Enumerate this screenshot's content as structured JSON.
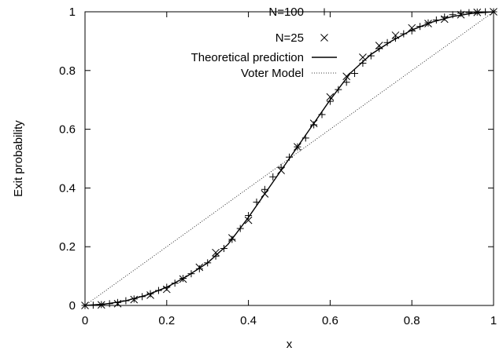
{
  "chart_data": {
    "type": "scatter",
    "title": "",
    "xlabel": "x",
    "ylabel": "Exit probability",
    "xlim": [
      0,
      1
    ],
    "ylim": [
      0,
      1
    ],
    "x_ticks": [
      "0",
      "0.2",
      "0.4",
      "0.6",
      "0.8",
      "1"
    ],
    "y_ticks": [
      "0",
      "0.2",
      "0.4",
      "0.6",
      "0.8",
      "1"
    ],
    "grid": false,
    "legend_position": "top-left",
    "series": [
      {
        "name": "N=100",
        "marker": "plus",
        "x": [
          0.0,
          0.02,
          0.04,
          0.06,
          0.08,
          0.1,
          0.12,
          0.14,
          0.16,
          0.18,
          0.2,
          0.22,
          0.24,
          0.26,
          0.28,
          0.3,
          0.32,
          0.34,
          0.36,
          0.38,
          0.4,
          0.42,
          0.44,
          0.46,
          0.48,
          0.5,
          0.52,
          0.54,
          0.56,
          0.58,
          0.6,
          0.62,
          0.64,
          0.66,
          0.68,
          0.7,
          0.72,
          0.74,
          0.76,
          0.78,
          0.8,
          0.82,
          0.84,
          0.86,
          0.88,
          0.9,
          0.92,
          0.94,
          0.96,
          0.98,
          1.0
        ],
        "y": [
          0.0,
          0.001,
          0.003,
          0.006,
          0.01,
          0.016,
          0.022,
          0.03,
          0.04,
          0.051,
          0.062,
          0.076,
          0.092,
          0.108,
          0.125,
          0.145,
          0.168,
          0.194,
          0.225,
          0.262,
          0.306,
          0.352,
          0.395,
          0.438,
          0.47,
          0.505,
          0.54,
          0.57,
          0.615,
          0.65,
          0.695,
          0.735,
          0.76,
          0.79,
          0.825,
          0.85,
          0.875,
          0.895,
          0.91,
          0.925,
          0.935,
          0.95,
          0.962,
          0.972,
          0.982,
          0.99,
          0.995,
          0.997,
          0.999,
          1.0,
          1.0
        ]
      },
      {
        "name": "N=25",
        "marker": "cross",
        "x": [
          0.0,
          0.04,
          0.08,
          0.12,
          0.16,
          0.2,
          0.24,
          0.28,
          0.32,
          0.36,
          0.4,
          0.44,
          0.48,
          0.52,
          0.56,
          0.6,
          0.64,
          0.68,
          0.72,
          0.76,
          0.8,
          0.84,
          0.88,
          0.92,
          0.96,
          1.0
        ],
        "y": [
          0.0,
          0.002,
          0.006,
          0.02,
          0.035,
          0.055,
          0.09,
          0.13,
          0.18,
          0.23,
          0.29,
          0.38,
          0.46,
          0.54,
          0.62,
          0.71,
          0.78,
          0.845,
          0.885,
          0.92,
          0.945,
          0.96,
          0.975,
          0.99,
          0.998,
          1.0
        ]
      },
      {
        "name": "Theoretical prediction",
        "marker": "solid-line",
        "x": [
          0.0,
          0.05,
          0.1,
          0.15,
          0.2,
          0.25,
          0.3,
          0.35,
          0.4,
          0.45,
          0.5,
          0.55,
          0.6,
          0.65,
          0.7,
          0.75,
          0.8,
          0.85,
          0.9,
          0.95,
          1.0
        ],
        "y": [
          0.0,
          0.005,
          0.016,
          0.035,
          0.062,
          0.1,
          0.145,
          0.208,
          0.3,
          0.4,
          0.5,
          0.6,
          0.7,
          0.792,
          0.855,
          0.9,
          0.938,
          0.965,
          0.984,
          0.995,
          1.0
        ]
      },
      {
        "name": "Voter Model",
        "marker": "dotted-line",
        "x": [
          0,
          1
        ],
        "y": [
          0,
          1
        ]
      }
    ]
  }
}
